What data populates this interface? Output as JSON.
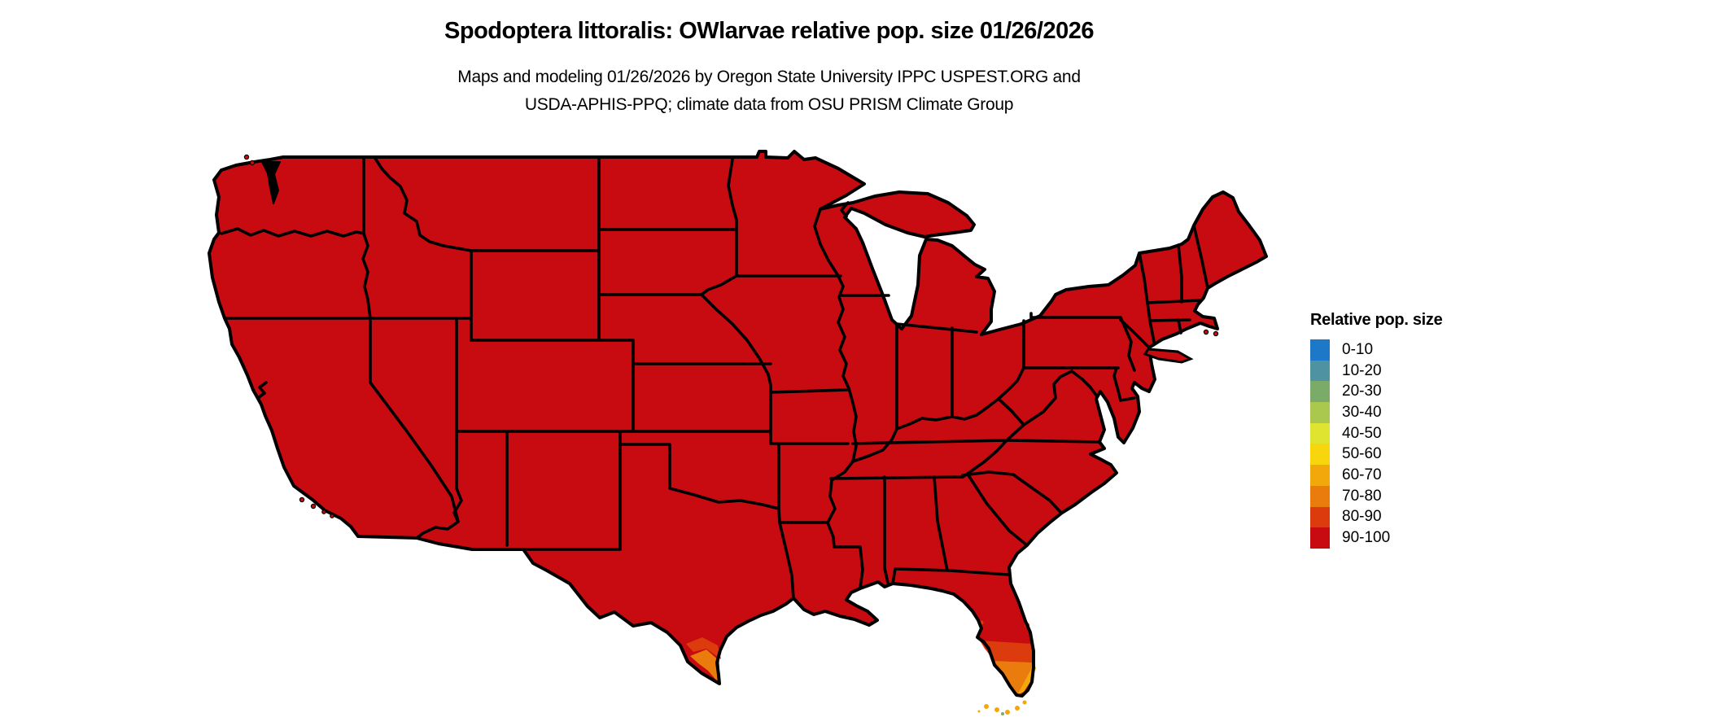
{
  "title": "Spodoptera littoralis: OWlarvae relative pop. size 01/26/2026",
  "subtitle_line1": "Maps and modeling 01/26/2026 by Oregon State University IPPC USPEST.ORG and",
  "subtitle_line2": "USDA-APHIS-PPQ; climate data from OSU PRISM Climate Group",
  "legend": {
    "title": "Relative pop. size",
    "items": [
      {
        "label": "0-10",
        "color": "#1e78c8"
      },
      {
        "label": "10-20",
        "color": "#4f93a2"
      },
      {
        "label": "20-30",
        "color": "#7bab68"
      },
      {
        "label": "30-40",
        "color": "#a9c84d"
      },
      {
        "label": "40-50",
        "color": "#dfe430"
      },
      {
        "label": "50-60",
        "color": "#f8d60e"
      },
      {
        "label": "60-70",
        "color": "#f2a80b"
      },
      {
        "label": "70-80",
        "color": "#e97c0c"
      },
      {
        "label": "80-90",
        "color": "#dc3b0d"
      },
      {
        "label": "90-100",
        "color": "#c70b10"
      }
    ]
  },
  "map": {
    "kind": "US continental choropleth, black state borders on white background",
    "dominant_category": "90-100",
    "regions": [
      {
        "name": "Continental US (nearly all states)",
        "category": "90-100"
      },
      {
        "name": "South Texas - Rio Grande Valley tip",
        "category": "70-90"
      },
      {
        "name": "South Florida peninsula",
        "category": "60-90"
      },
      {
        "name": "Florida Keys",
        "category": "60-70"
      }
    ]
  },
  "colors": {
    "background": "#ffffff",
    "map_fill": "#c70b10",
    "outline": "#000000",
    "band_80_90": "#dc3b0d",
    "band_70_80": "#e97c0c",
    "band_60_70": "#f2a80b",
    "band_20_30": "#7bab68"
  }
}
